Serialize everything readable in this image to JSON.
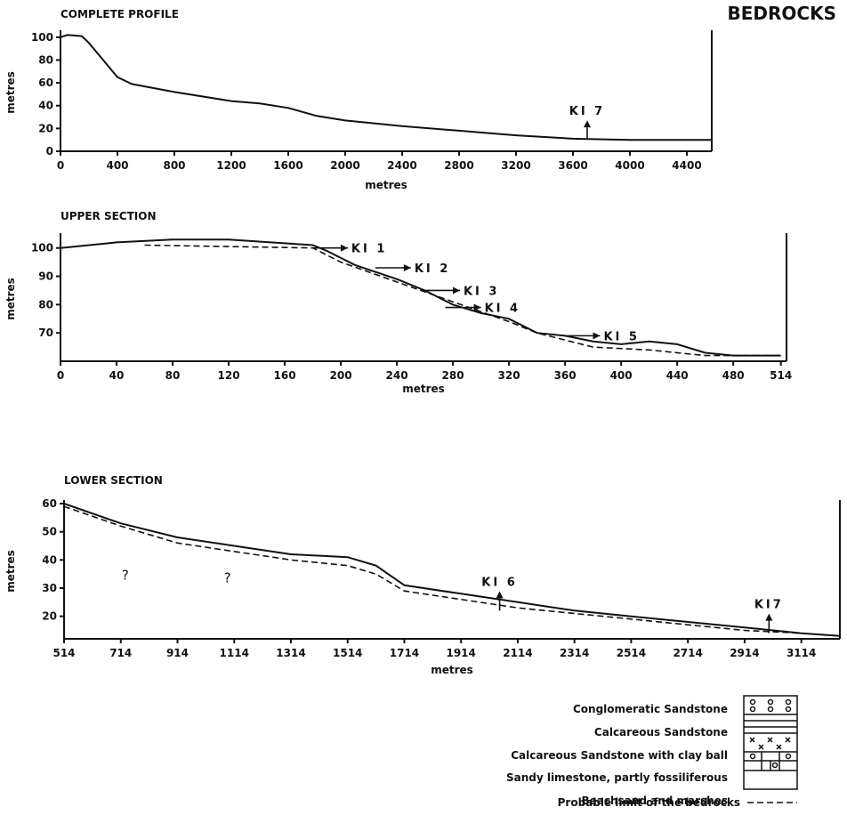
{
  "title": "BEDROCKS",
  "chart_data": [
    {
      "type": "line",
      "title": "COMPLETE PROFILE",
      "x_label": "metres",
      "y_label": "metres",
      "xlim": [
        0,
        4575
      ],
      "ylim": [
        0,
        103
      ],
      "xticks": [
        0,
        400,
        800,
        1200,
        1600,
        2000,
        2400,
        2800,
        3200,
        3600,
        4000,
        4400
      ],
      "yticks": [
        0,
        20,
        40,
        60,
        80,
        100
      ],
      "series": [
        {
          "color": "#111111",
          "dash": false,
          "x": [
            0,
            50,
            150,
            200,
            300,
            400,
            450,
            500,
            800,
            1200,
            1400,
            1600,
            1800,
            2000,
            2400,
            2800,
            3200,
            3600,
            4000,
            4575
          ],
          "values": [
            100,
            102,
            101,
            95,
            80,
            65,
            62,
            59,
            52,
            44,
            42,
            38,
            31,
            27,
            22,
            18,
            14,
            11,
            10,
            10
          ]
        }
      ],
      "annotations": [
        {
          "text": "KI 7",
          "x": 3700,
          "y": 10,
          "arrow": "up"
        }
      ]
    },
    {
      "type": "line",
      "title": "UPPER SECTION",
      "x_label": "metres",
      "y_label": "metres",
      "xlim": [
        0,
        518
      ],
      "ylim": [
        60,
        104
      ],
      "xticks": [
        0,
        40,
        80,
        120,
        160,
        200,
        240,
        280,
        320,
        360,
        400,
        440,
        480,
        514
      ],
      "yticks": [
        70,
        80,
        90,
        100
      ],
      "series": [
        {
          "color": "#111111",
          "dash": false,
          "x": [
            0,
            40,
            80,
            120,
            180,
            190,
            210,
            240,
            260,
            280,
            300,
            320,
            340,
            360,
            380,
            400,
            420,
            440,
            460,
            480,
            514
          ],
          "values": [
            100,
            102,
            103,
            103,
            101,
            99,
            94,
            89,
            85,
            80,
            77,
            75,
            70,
            69,
            67,
            66,
            67,
            66,
            63,
            62,
            62
          ]
        },
        {
          "color": "#111111",
          "dash": true,
          "x": [
            60,
            180,
            200,
            240,
            280,
            320,
            340,
            380,
            420,
            460,
            514
          ],
          "values": [
            101,
            100,
            95,
            88,
            81,
            74,
            70,
            65,
            64,
            62,
            62
          ]
        }
      ],
      "annotations": [
        {
          "text": "KI 1",
          "x": 205,
          "y": 100,
          "arrow": "right"
        },
        {
          "text": "KI 2",
          "x": 250,
          "y": 93,
          "arrow": "right"
        },
        {
          "text": "KI 3",
          "x": 285,
          "y": 85,
          "arrow": "right"
        },
        {
          "text": "KI 4",
          "x": 300,
          "y": 79,
          "arrow": "right"
        },
        {
          "text": "KI 5",
          "x": 385,
          "y": 69,
          "arrow": "right"
        }
      ]
    },
    {
      "type": "line",
      "title": "LOWER SECTION",
      "x_label": "metres",
      "y_label": "metres",
      "xlim": [
        514,
        3250
      ],
      "ylim": [
        12,
        60
      ],
      "xticks": [
        514,
        714,
        914,
        1114,
        1314,
        1514,
        1714,
        1914,
        2114,
        2314,
        2514,
        2714,
        2914,
        3114
      ],
      "yticks": [
        20,
        30,
        40,
        50,
        60
      ],
      "series": [
        {
          "color": "#111111",
          "dash": false,
          "x": [
            514,
            714,
            914,
            1114,
            1314,
            1514,
            1614,
            1714,
            1914,
            2114,
            2314,
            2514,
            2714,
            2914,
            3114,
            3250
          ],
          "values": [
            60,
            53,
            48,
            45,
            42,
            41,
            38,
            31,
            28,
            25,
            22,
            20,
            18,
            16,
            14,
            13
          ]
        },
        {
          "color": "#111111",
          "dash": true,
          "x": [
            514,
            714,
            914,
            1114,
            1314,
            1514,
            1614,
            1714,
            1914,
            2114,
            2314,
            2514,
            2714,
            2914,
            3114
          ],
          "values": [
            59,
            52,
            46,
            43,
            40,
            38,
            35,
            29,
            26,
            23,
            21,
            19,
            17,
            15,
            14
          ]
        }
      ],
      "annotations": [
        {
          "text": "KI 6",
          "x": 2050,
          "y": 22,
          "arrow": "up"
        },
        {
          "text": "KI7",
          "x": 3000,
          "y": 14,
          "arrow": "up"
        },
        {
          "text": "?",
          "x": 730,
          "y": 33,
          "arrow": "none"
        },
        {
          "text": "?",
          "x": 1090,
          "y": 32,
          "arrow": "none"
        }
      ]
    }
  ],
  "legend": [
    "Conglomeratic Sandstone",
    "Calcareous Sandstone",
    "Calcareous Sandstone with clay ball",
    "Sandy limestone, partly fossiliferous",
    "Beachsand and marshes",
    "Probable limit of the bedrocks"
  ]
}
